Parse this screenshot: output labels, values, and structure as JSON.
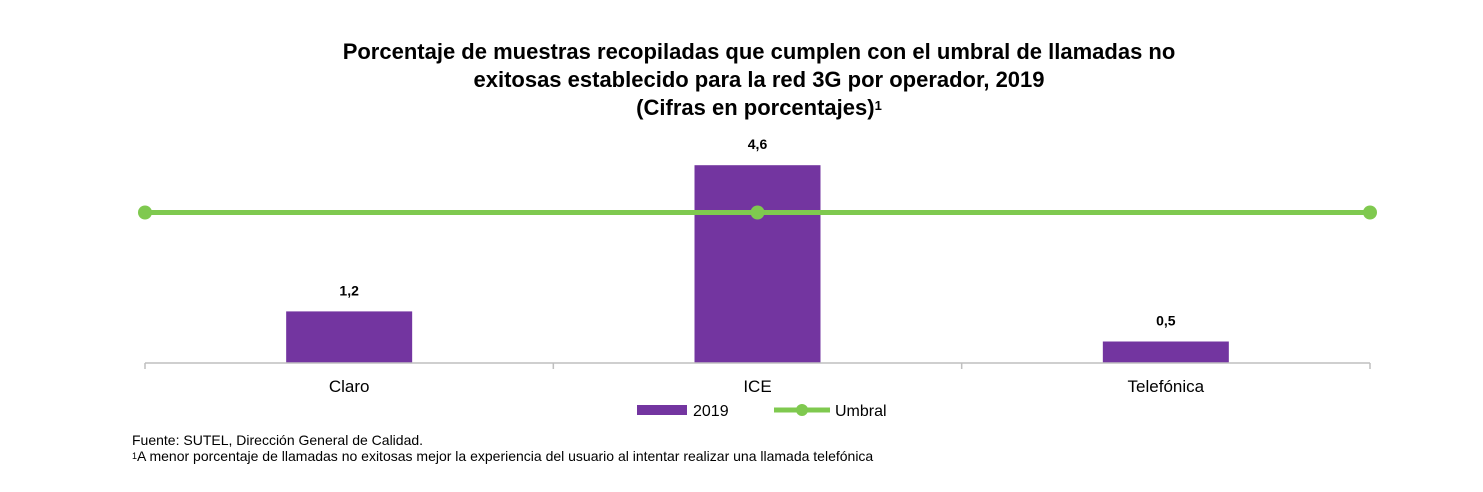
{
  "title": {
    "line1": "Porcentaje de muestras recopiladas que cumplen con el umbral de llamadas no",
    "line2": "exitosas establecido para la red 3G por operador, 2019",
    "line3": "(Cifras en porcentajes)",
    "line3_sup": "1"
  },
  "chart_data": {
    "type": "bar",
    "categories": [
      "Claro",
      "ICE",
      "Telefónica"
    ],
    "series": [
      {
        "name": "2019",
        "kind": "bar",
        "color": "#7335a0",
        "values": [
          1.2,
          4.6,
          0.5
        ],
        "labels": [
          "1,2",
          "4,6",
          "0,5"
        ]
      },
      {
        "name": "Umbral",
        "kind": "line",
        "color": "#7fc94f",
        "values": [
          3.5,
          3.5,
          3.5
        ]
      }
    ],
    "ylim": [
      0,
      5
    ],
    "grid": false,
    "legend": "bottom"
  },
  "footer": {
    "source": "Fuente: SUTEL, Dirección General de Calidad.",
    "note_sup": "1",
    "note": "A menor porcentaje de llamadas no exitosas mejor la experiencia del usuario al intentar realizar una llamada telefónica"
  }
}
